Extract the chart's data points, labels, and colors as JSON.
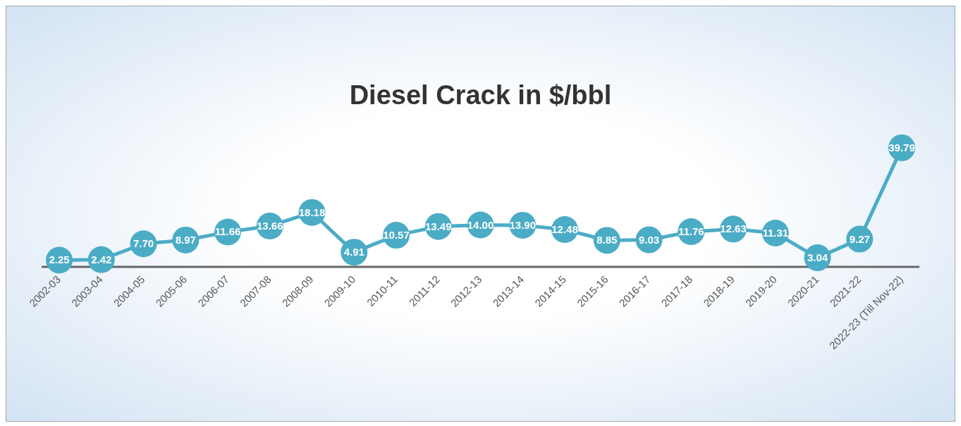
{
  "chart_data": {
    "type": "line",
    "title": "Diesel Crack in $/bbl",
    "categories": [
      "2002-03",
      "2003-04",
      "2004-05",
      "2005-06",
      "2006-07",
      "2007-08",
      "2008-09",
      "2009-10",
      "2010-11",
      "2011-12",
      "2012-13",
      "2013-14",
      "2014-15",
      "2015-16",
      "2016-17",
      "2017-18",
      "2018-19",
      "2019-20",
      "2020-21",
      "2021-22",
      "2022-23 (Till Nov-22)"
    ],
    "series": [
      {
        "color": "#4bacc6",
        "values": [
          2.25,
          2.42,
          7.7,
          8.97,
          11.66,
          13.66,
          18.18,
          4.91,
          10.57,
          13.49,
          14.0,
          13.9,
          12.48,
          8.85,
          9.03,
          11.76,
          12.63,
          11.31,
          3.04,
          9.27,
          39.79
        ],
        "value_labels": [
          "2.25",
          "2.42",
          "7.70",
          "8.97",
          "11.66",
          "13.66",
          "18.18",
          "4.91",
          "10.57",
          "13.49",
          "14.00",
          "13.90",
          "12.48",
          "8.85",
          "9.03",
          "11.76",
          "12.63",
          "11.31",
          "3.04",
          "9.27",
          "39.79"
        ]
      }
    ],
    "marker": "circle",
    "line_style": "solid",
    "grid": false,
    "legend": false
  }
}
